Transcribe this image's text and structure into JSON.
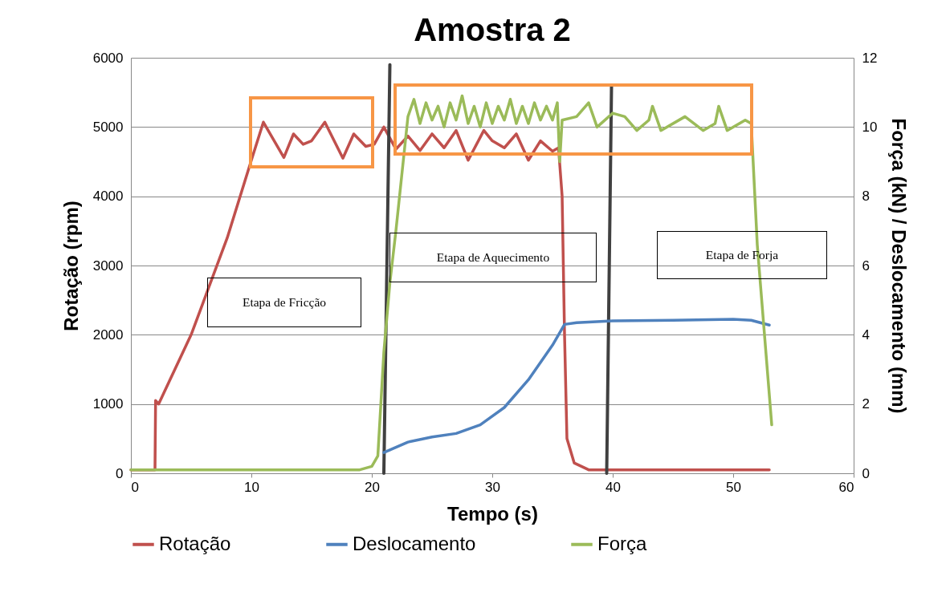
{
  "chart_data": {
    "type": "line",
    "title": "Amostra  2",
    "xlabel": "Tempo (s)",
    "ylabel": "Rotação (rpm)",
    "y2label": "Força (kN) / Deslocamento (mm)",
    "xlim": [
      0,
      60
    ],
    "xticks": [
      0,
      10,
      20,
      30,
      40,
      50,
      60
    ],
    "ylim": [
      0,
      6000
    ],
    "yticks": [
      0,
      1000,
      2000,
      3000,
      4000,
      5000,
      6000
    ],
    "y2lim": [
      0,
      12
    ],
    "y2ticks": [
      0,
      2,
      4,
      6,
      8,
      10,
      12
    ],
    "grid": "y",
    "legend": "bottom",
    "line_style": "solid",
    "marker": "none",
    "series": [
      {
        "name": "Rotação",
        "color": "#c0504d",
        "x": [
          0,
          2,
          2.05,
          2.3,
          5,
          8,
          10,
          11,
          12.7,
          13.5,
          14.3,
          15,
          16.1,
          17.6,
          18.5,
          19.5,
          20.2,
          21,
          22,
          23,
          24,
          25,
          26,
          27,
          28,
          29.3,
          30,
          31,
          32,
          33,
          34,
          35,
          35.5,
          35.8,
          36,
          36.2,
          36.8,
          38,
          53
        ],
        "values": [
          50,
          50,
          1050,
          1000,
          2000,
          3400,
          4520,
          5070,
          4560,
          4900,
          4750,
          4800,
          5070,
          4550,
          4900,
          4720,
          4750,
          5000,
          4680,
          4870,
          4660,
          4900,
          4700,
          4950,
          4520,
          4950,
          4800,
          4700,
          4900,
          4520,
          4800,
          4650,
          4700,
          4000,
          2000,
          500,
          150,
          50,
          50
        ]
      },
      {
        "name": "Deslocamento",
        "color": "#4f81bd",
        "axis": "y2",
        "x": [
          21,
          23,
          25,
          27,
          29,
          31,
          33,
          35,
          36,
          37,
          40,
          45,
          50,
          51.5,
          53
        ],
        "values": [
          0.6,
          0.9,
          1.05,
          1.15,
          1.4,
          1.9,
          2.7,
          3.7,
          4.3,
          4.35,
          4.4,
          4.42,
          4.45,
          4.42,
          4.28
        ]
      },
      {
        "name": "Força",
        "color": "#9bbb59",
        "axis": "y2",
        "x": [
          0,
          5,
          10,
          15,
          19,
          20,
          20.5,
          21,
          21.5,
          22,
          23,
          23.5,
          24,
          24.5,
          25,
          25.5,
          26,
          26.5,
          27,
          27.5,
          28,
          28.5,
          29,
          29.5,
          30,
          30.5,
          31,
          31.5,
          32,
          32.5,
          33,
          33.5,
          34,
          34.5,
          35,
          35.4,
          35.6,
          35.8,
          37,
          38,
          38.7,
          40,
          41,
          42,
          43,
          43.3,
          44,
          46,
          47.5,
          48.5,
          48.8,
          49.5,
          51,
          51.5,
          52,
          53.2
        ],
        "values": [
          0.1,
          0.1,
          0.1,
          0.1,
          0.1,
          0.2,
          0.5,
          3.5,
          5.5,
          7,
          10.3,
          10.8,
          10.1,
          10.7,
          10.2,
          10.6,
          10.0,
          10.7,
          10.2,
          10.9,
          10.1,
          10.6,
          10.0,
          10.7,
          10.1,
          10.6,
          10.2,
          10.8,
          10.1,
          10.6,
          10.1,
          10.7,
          10.2,
          10.6,
          10.2,
          10.7,
          9.0,
          10.2,
          10.3,
          10.7,
          10.0,
          10.4,
          10.3,
          9.9,
          10.2,
          10.6,
          9.9,
          10.3,
          9.9,
          10.1,
          10.6,
          9.9,
          10.2,
          10.1,
          6.6,
          1.4
        ]
      },
      {
        "type": "line",
        "color": "#404040",
        "x": [
          21.5,
          21
        ],
        "values": [
          5900,
          0
        ]
      },
      {
        "type": "line",
        "color": "#404040",
        "x": [
          39.9,
          39.5
        ],
        "values": [
          5600,
          0
        ]
      }
    ],
    "annotations": [
      "Etapa de Fricção",
      "Etapa de Aquecimento",
      "Etapa de Forja"
    ]
  }
}
